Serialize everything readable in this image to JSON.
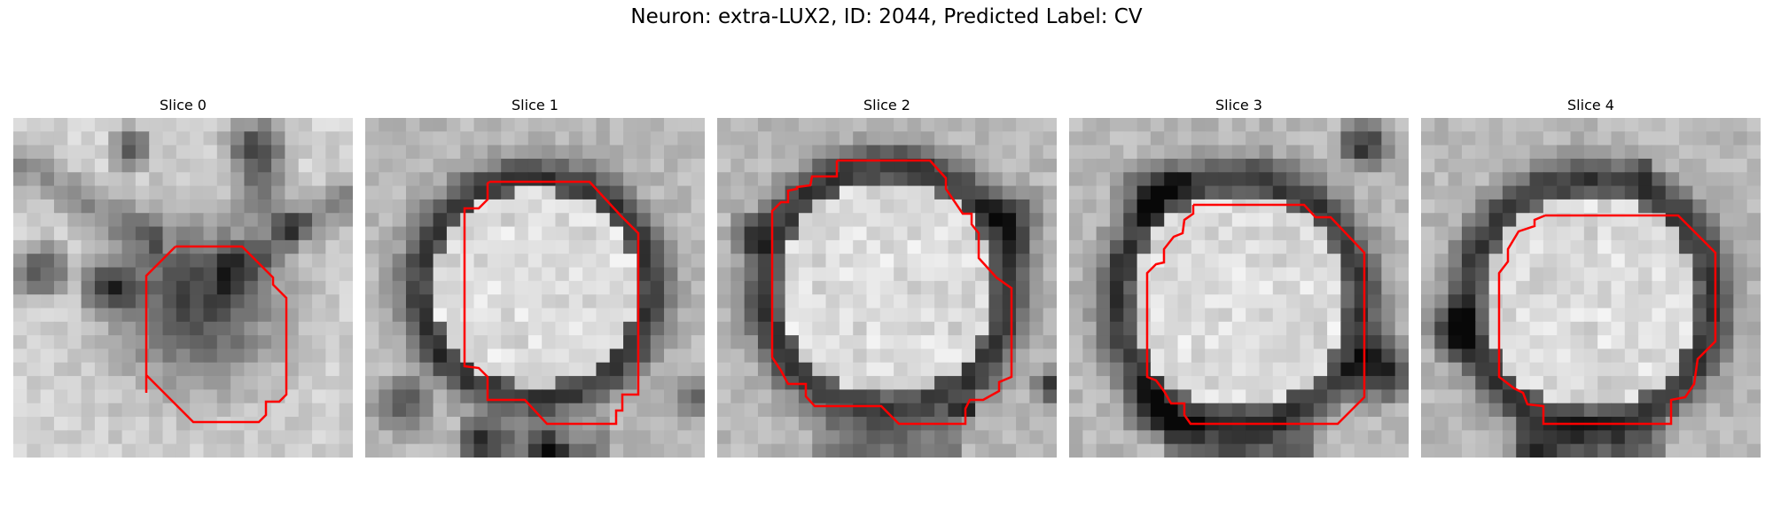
{
  "figure": {
    "title": "Neuron: extra-LUX2, ID: 2044, Predicted Label: CV",
    "outline_color": "#ff0000"
  },
  "slices": [
    {
      "title": "Slice 0",
      "type": "dark-blob"
    },
    {
      "title": "Slice 1",
      "type": "ring"
    },
    {
      "title": "Slice 2",
      "type": "ring"
    },
    {
      "title": "Slice 3",
      "type": "ring"
    },
    {
      "title": "Slice 4",
      "type": "ring"
    }
  ]
}
